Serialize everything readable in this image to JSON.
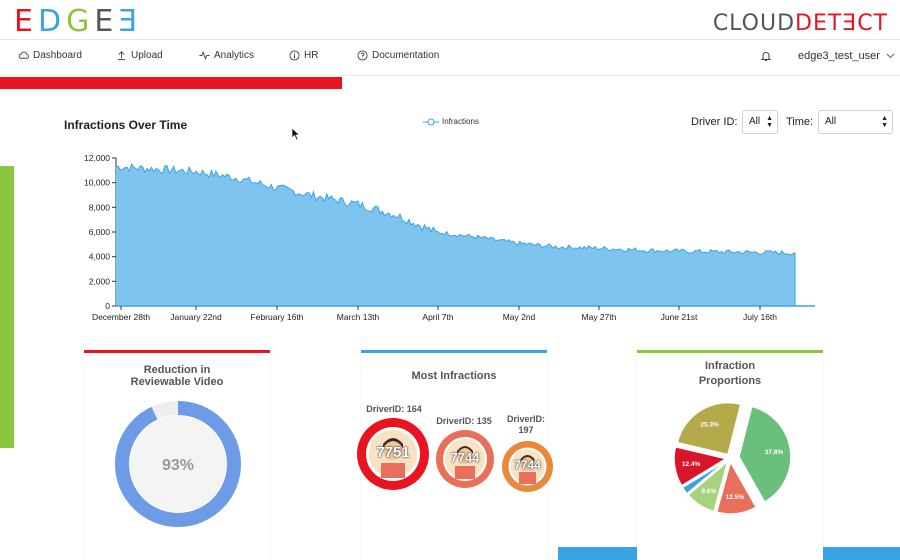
{
  "header": {
    "logo_left": [
      "E",
      "D",
      "G",
      "E",
      "Ǝ"
    ],
    "logo_left_colors": [
      "#e8141f",
      "#3aa3e3",
      "#8cc63e",
      "#555555",
      "#3aa3e3"
    ],
    "logo_right_a": "CLOUD",
    "logo_right_b": "DETƎCT"
  },
  "nav": {
    "items": [
      {
        "label": "Dashboard",
        "icon": "cloud-icon"
      },
      {
        "label": "Upload",
        "icon": "upload-icon"
      },
      {
        "label": "Analytics",
        "icon": "pulse-icon"
      },
      {
        "label": "HR",
        "icon": "info-icon"
      },
      {
        "label": "Documentation",
        "icon": "help-icon"
      }
    ],
    "user": "edge3_test_user"
  },
  "colors": {
    "red": "#e8141f",
    "blue": "#3aa3e3",
    "green": "#8cc63e",
    "area": "#7ec4ee",
    "area_line": "#3aa3e3"
  },
  "filters": {
    "driver_label": "Driver ID:",
    "driver_value": "All",
    "time_label": "Time:",
    "time_value": "All"
  },
  "chart_data": [
    {
      "type": "area",
      "title": "Infractions Over Time",
      "series_name": "Infractions",
      "xlabel": "",
      "ylabel": "",
      "ylim": [
        0,
        12000
      ],
      "yticks": [
        "0",
        "2,000",
        "4,000",
        "6,000",
        "8,000",
        "10,000",
        "12,000"
      ],
      "xticks": [
        "December 28th",
        "January 22nd",
        "February 16th",
        "March 13th",
        "April 7th",
        "May 2nd",
        "May 27th",
        "June 21st",
        "July 16th"
      ],
      "points": [
        {
          "x": "Dec 28",
          "y": 11300
        },
        {
          "x": "Jan 10",
          "y": 11100
        },
        {
          "x": "Jan 22",
          "y": 10900
        },
        {
          "x": "Feb 4",
          "y": 10400
        },
        {
          "x": "Feb 16",
          "y": 9600
        },
        {
          "x": "Mar 1",
          "y": 8900
        },
        {
          "x": "Mar 13",
          "y": 8300
        },
        {
          "x": "Mar 25",
          "y": 7400
        },
        {
          "x": "Apr 7",
          "y": 6000
        },
        {
          "x": "Apr 20",
          "y": 5600
        },
        {
          "x": "May 2",
          "y": 5100
        },
        {
          "x": "May 14",
          "y": 4800
        },
        {
          "x": "May 27",
          "y": 4700
        },
        {
          "x": "Jun 9",
          "y": 4550
        },
        {
          "x": "Jun 21",
          "y": 4450
        },
        {
          "x": "Jul 4",
          "y": 4400
        },
        {
          "x": "Jul 16",
          "y": 4350
        },
        {
          "x": "Jul 22",
          "y": 4300
        }
      ]
    },
    {
      "type": "pie",
      "title": "Reduction in Reviewable Video",
      "values": [
        93,
        7
      ],
      "center_label": "93%"
    },
    {
      "type": "pie",
      "title": "Infraction Proportions",
      "slices": [
        {
          "label": "37.8%",
          "value": 37.8,
          "color": "#6abf7b"
        },
        {
          "label": "12.5%",
          "value": 12.5,
          "color": "#e8705a"
        },
        {
          "label": "9.6%",
          "value": 9.6,
          "color": "#a8d37e"
        },
        {
          "label": "",
          "value": 2.4,
          "color": "#3aa3e3"
        },
        {
          "label": "12.4%",
          "value": 12.4,
          "color": "#d8152b"
        },
        {
          "label": "25.3%",
          "value": 25.3,
          "color": "#b3ab4a"
        }
      ]
    }
  ],
  "cards": {
    "reduction_title_1": "Reduction in",
    "reduction_title_2": "Reviewable Video",
    "most_title": "Most Infractions",
    "proportions_title_1": "Infraction",
    "proportions_title_2": "Proportions"
  },
  "drivers": [
    {
      "label": "DriverID: 164",
      "value": "7751",
      "ring": "#e8141f"
    },
    {
      "label": "DriverID: 135",
      "value": "7744",
      "ring": "#e8705a"
    },
    {
      "label_1": "DriverID:",
      "label_2": "197",
      "value": "7744",
      "ring": "#e88a3a"
    }
  ]
}
